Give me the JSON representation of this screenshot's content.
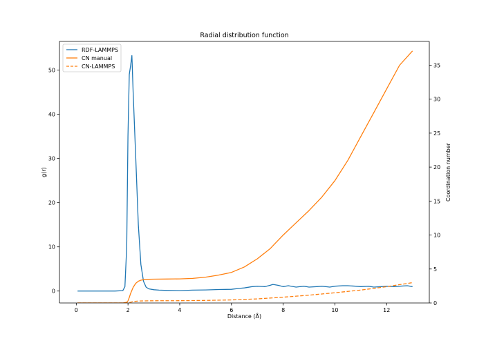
{
  "chart_data": {
    "type": "line",
    "title": "Radial distribution function",
    "xlabel": "Distance (Å)",
    "ylabel": "g(r)",
    "y2label": "Coordination number",
    "xlim": [
      -0.65,
      13.65
    ],
    "ylim": [
      -2.7,
      56.5
    ],
    "y2lim": [
      0,
      38.5
    ],
    "xticks": [
      0,
      2,
      4,
      6,
      8,
      10,
      12
    ],
    "yticks": [
      0,
      10,
      20,
      30,
      40,
      50
    ],
    "y2ticks": [
      0,
      5,
      10,
      15,
      20,
      25,
      30,
      35
    ],
    "grid": false,
    "legend_position": "top-left",
    "series": [
      {
        "name": "RDF-LAMMPS",
        "axis": "left",
        "color": "#1f77b4",
        "style": "solid",
        "x": [
          0.05,
          0.5,
          1.0,
          1.5,
          1.8,
          1.88,
          1.95,
          2.0,
          2.05,
          2.1,
          2.15,
          2.2,
          2.3,
          2.4,
          2.5,
          2.6,
          2.7,
          2.8,
          3.0,
          3.2,
          3.5,
          4.0,
          4.5,
          5.0,
          5.5,
          6.0,
          6.3,
          6.5,
          6.8,
          7.0,
          7.3,
          7.5,
          7.6,
          7.8,
          8.0,
          8.2,
          8.5,
          8.8,
          9.0,
          9.3,
          9.5,
          9.8,
          10.0,
          10.3,
          10.5,
          10.8,
          11.0,
          11.3,
          11.5,
          11.8,
          12.0,
          12.3,
          12.5,
          12.8,
          13.0
        ],
        "y": [
          0,
          0,
          0,
          0,
          0.1,
          1.0,
          10.0,
          35.0,
          49.0,
          51.0,
          53.3,
          45.0,
          30.0,
          15.0,
          6.0,
          2.2,
          0.9,
          0.5,
          0.3,
          0.2,
          0.15,
          0.1,
          0.2,
          0.25,
          0.35,
          0.4,
          0.6,
          0.7,
          1.0,
          1.1,
          1.0,
          1.3,
          1.5,
          1.3,
          1.0,
          1.2,
          0.9,
          1.1,
          0.9,
          1.0,
          1.1,
          0.9,
          1.1,
          1.2,
          1.2,
          1.1,
          1.0,
          1.1,
          0.9,
          1.0,
          1.1,
          1.0,
          1.1,
          1.2,
          1.0
        ]
      },
      {
        "name": "CN manual",
        "axis": "right",
        "color": "#ff7f0e",
        "style": "solid",
        "x": [
          0.05,
          1.0,
          1.8,
          1.95,
          2.0,
          2.05,
          2.1,
          2.2,
          2.3,
          2.4,
          2.5,
          2.6,
          2.8,
          3.0,
          3.5,
          4.0,
          4.5,
          5.0,
          5.5,
          6.0,
          6.5,
          7.0,
          7.5,
          8.0,
          8.5,
          9.0,
          9.5,
          10.0,
          10.5,
          11.0,
          11.5,
          12.0,
          12.5,
          13.0
        ],
        "y": [
          0,
          0,
          0,
          0.1,
          0.3,
          0.8,
          1.4,
          2.3,
          2.9,
          3.2,
          3.35,
          3.42,
          3.48,
          3.5,
          3.52,
          3.55,
          3.62,
          3.8,
          4.1,
          4.5,
          5.3,
          6.5,
          8.0,
          10.0,
          11.8,
          13.6,
          15.6,
          18.0,
          21.0,
          24.5,
          28.0,
          31.5,
          35.0,
          37.1
        ]
      },
      {
        "name": "CN-LAMMPS",
        "axis": "right",
        "color": "#ff7f0e",
        "style": "dashed",
        "x": [
          0.05,
          1.0,
          1.8,
          2.0,
          2.1,
          2.2,
          2.4,
          2.6,
          3.0,
          4.0,
          5.0,
          6.0,
          7.0,
          8.0,
          9.0,
          10.0,
          11.0,
          12.0,
          13.0
        ],
        "y": [
          0,
          0,
          0,
          0.02,
          0.1,
          0.2,
          0.28,
          0.3,
          0.32,
          0.34,
          0.38,
          0.45,
          0.6,
          0.85,
          1.15,
          1.5,
          1.9,
          2.4,
          3.0
        ]
      }
    ]
  }
}
